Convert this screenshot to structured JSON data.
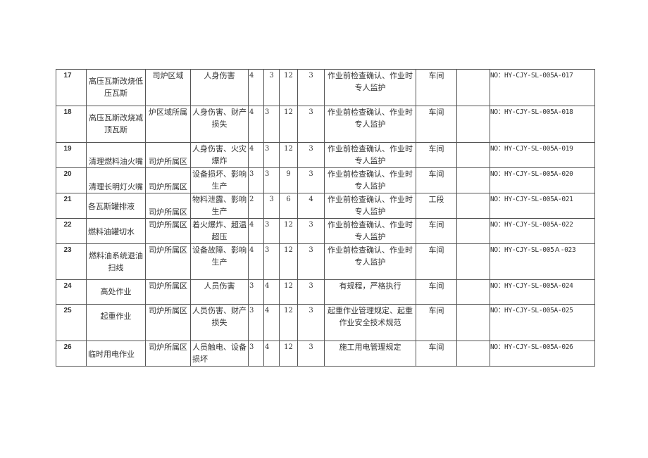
{
  "rows": [
    {
      "no": "17",
      "task": "高压瓦斯改烧低压瓦斯",
      "area": "司炉区域",
      "hazard": "人身伤害",
      "l": "4",
      "e": "3",
      "d": "12",
      "level": "3",
      "measure": "作业前检查确认、作业时专人监护",
      "resp": "车间",
      "extra": "",
      "code": "NO：HY-CJY-SL-005A-017"
    },
    {
      "no": "18",
      "task": "高压瓦斯改烧减顶瓦斯",
      "area": "炉区域所属",
      "hazard": "人身伤害、财产损失",
      "l": "4",
      "e": "3",
      "d": "12",
      "level": "3",
      "measure": "作业前检查确认、作业时专人监护",
      "resp": "车间",
      "extra": "",
      "code": "NO：HY-CJY-SL-005A-018"
    },
    {
      "no": "19",
      "task": "清理燃料油火嘴",
      "area": "司炉所属区",
      "hazard": "人身伤害、火灾爆炸",
      "l": "4",
      "e": "3",
      "d": "12",
      "level": "3",
      "measure": "作业前检查确认、作业时专人监护",
      "resp": "车间",
      "extra": "",
      "code": "NO：HY-CJY-SL-005A-019"
    },
    {
      "no": "20",
      "task": "清理长明灯火嘴",
      "area": "司炉所属区",
      "hazard": "设备损坏、影响生产",
      "l": "3",
      "e": "3",
      "d": "9",
      "level": "3",
      "measure": "作业前检查确认、作业时专人监护",
      "resp": "车间",
      "extra": "",
      "code": "NO：HY-CJY-SL-005A-020"
    },
    {
      "no": "21",
      "task": "各瓦斯罐排液",
      "area": "司炉所属区",
      "hazard": "物料泄露、影响生产",
      "l": "2",
      "e": "3",
      "d": "6",
      "level": "4",
      "measure": "作业前检查确认、作业时专人监护",
      "resp": "工段",
      "extra": "",
      "code": "NO：HY-CJY-SL-005A-021"
    },
    {
      "no": "22",
      "task": "燃料油罐切水",
      "area": "司炉所属区",
      "hazard": "着火爆炸、超温超压",
      "l": "4",
      "e": "3",
      "d": "12",
      "level": "3",
      "measure": "作业前检查确认、作业时专人监护",
      "resp": "车间",
      "extra": "",
      "code": "NO：HY-CJY-SL-005A-022"
    },
    {
      "no": "23",
      "task": "燃料油系统退油扫线",
      "area": "司炉所属区",
      "hazard": "设备故障、影响生产",
      "l": "4",
      "e": "3",
      "d": "12",
      "level": "3",
      "measure": "作业前检查确认、作业时专人监护",
      "resp": "车间",
      "extra": "",
      "code": "NO：HY-CJY-SL-005Ａ-023"
    },
    {
      "no": "24",
      "task": "高处作业",
      "area": "司炉所属区",
      "hazard": "人员伤害",
      "l": "3",
      "e": "4",
      "d": "12",
      "level": "3",
      "measure": "有规程，严格执行",
      "resp": "车间",
      "extra": "",
      "code": "NO：HY-CJY-SL-005A-024"
    },
    {
      "no": "25",
      "task": "起重作业",
      "area": "司炉所属区",
      "hazard": "人员伤害、财产损失",
      "l": "3",
      "e": "4",
      "d": "12",
      "level": "3",
      "measure": "起重作业管理规定、起重作业安全技术规范",
      "resp": "车间",
      "extra": "",
      "code": "NO：HY-CJY-SL-005A-025"
    },
    {
      "no": "26",
      "task": "临时用电作业",
      "area": "司炉所属区",
      "hazard": "人员触电、设备损坏",
      "l": "3",
      "e": "4",
      "d": "12",
      "level": "3",
      "measure": "施工用电管理规定",
      "resp": "车间",
      "extra": "",
      "code": "NO：HY-CJY-SL-005A-026"
    }
  ]
}
